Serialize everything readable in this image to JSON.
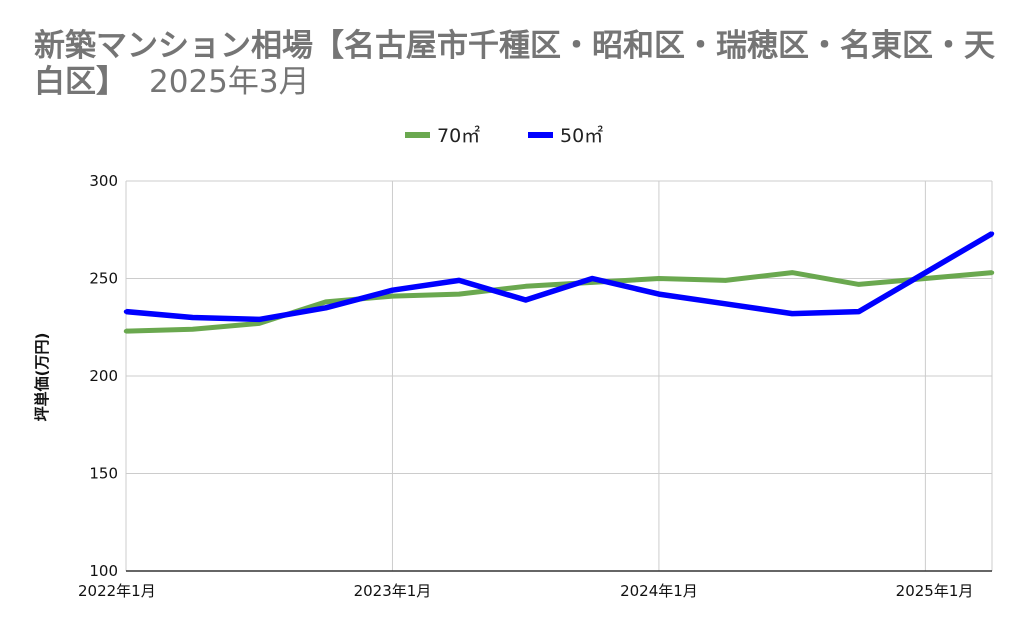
{
  "chart_data": {
    "type": "line",
    "title": "新築マンション相場【名古屋市千種区・昭和区・瑞穂区・名東区・天白区】",
    "subtitle": "2025年3月",
    "xlabel": "",
    "ylabel": "坪単価(万円)",
    "ylim": [
      100,
      300
    ],
    "yticks": [
      100,
      150,
      200,
      250,
      300
    ],
    "xticks": [
      "2022年1月",
      "2023年1月",
      "2024年1月",
      "2025年1月"
    ],
    "x": [
      "2022年1月",
      "2022年4月",
      "2022年7月",
      "2022年10月",
      "2023年1月",
      "2023年4月",
      "2023年7月",
      "2023年10月",
      "2024年1月",
      "2024年4月",
      "2024年7月",
      "2024年10月",
      "2025年1月",
      "2025年3月"
    ],
    "grid": true,
    "legend_position": "top",
    "series": [
      {
        "name": "70㎡",
        "color": "#6aa84f",
        "values": [
          223,
          224,
          227,
          238,
          241,
          242,
          246,
          248,
          250,
          249,
          253,
          247,
          250,
          253
        ]
      },
      {
        "name": "50㎡",
        "color": "#0000ff",
        "values": [
          233,
          230,
          229,
          235,
          244,
          249,
          239,
          250,
          242,
          237,
          232,
          233,
          253,
          273
        ]
      }
    ]
  }
}
